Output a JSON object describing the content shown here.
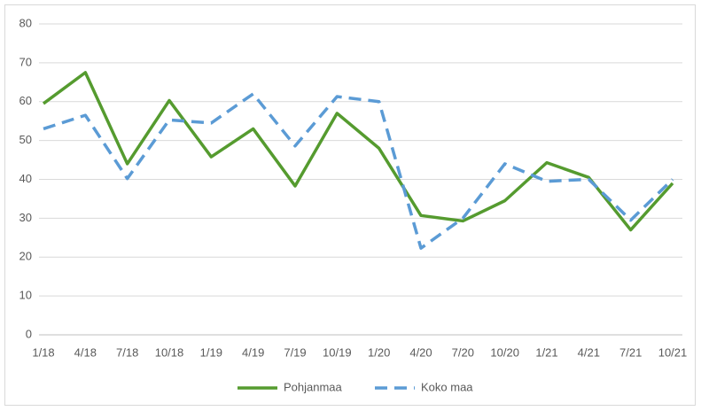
{
  "chart_data": {
    "type": "line",
    "categories": [
      "1/18",
      "4/18",
      "7/18",
      "10/18",
      "1/19",
      "4/19",
      "7/19",
      "10/19",
      "1/20",
      "4/20",
      "7/20",
      "10/20",
      "1/21",
      "4/21",
      "7/21",
      "10/21"
    ],
    "series": [
      {
        "name": "Pohjanmaa",
        "color": "#559b2f",
        "dash": false,
        "values": [
          59.5,
          67.5,
          44,
          60.3,
          45.8,
          53,
          38.3,
          57,
          48,
          30.7,
          29.3,
          34.5,
          44.3,
          40.5,
          27,
          39
        ]
      },
      {
        "name": "Koko maa",
        "color": "#5b9bd5",
        "dash": true,
        "values": [
          53,
          56.5,
          40.2,
          55.3,
          54.5,
          62,
          48.6,
          61.3,
          60,
          22.3,
          30,
          44,
          39.5,
          40,
          29.5,
          40
        ]
      }
    ],
    "ylim": [
      0,
      80
    ],
    "yticks": [
      0,
      10,
      20,
      30,
      40,
      50,
      60,
      70,
      80
    ],
    "grid": true,
    "legend": "bottom"
  }
}
